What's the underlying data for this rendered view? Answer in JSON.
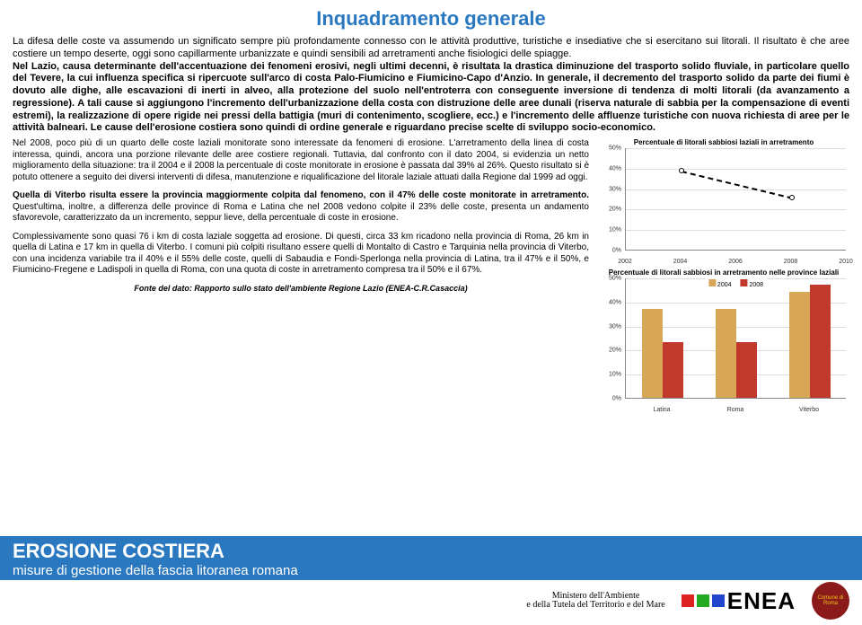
{
  "title_color": "#2a78c0",
  "title": "Inquadramento generale",
  "intro": "La difesa delle coste va assumendo un significato sempre più profondamente connesso con le attività produttive, turistiche e insediative che si esercitano sui litorali. Il risultato è che aree costiere un tempo deserte, oggi sono capillarmente urbanizzate e quindi sensibili ad arretramenti anche fisiologici delle spiagge.\nNel Lazio, causa determinante dell'accentuazione dei fenomeni erosivi, negli ultimi decenni, è risultata la drastica diminuzione del trasporto solido fluviale, in particolare quello del Tevere, la cui influenza specifica si ripercuote sull'arco di costa Palo-Fiumicino e Fiumicino-Capo d'Anzio. In generale, il decremento del trasporto solido da parte dei fiumi è dovuto alle dighe, alle escavazioni di inerti in alveo, alla protezione del suolo nell'entroterra con conseguente inversione di tendenza di molti litorali (da avanzamento a regressione). A tali cause si aggiungono l'incremento dell'urbanizzazione della costa con distruzione delle aree dunali (riserva naturale di sabbia per la compensazione di eventi estremi), la realizzazione di opere rigide nei pressi della battigia (muri di contenimento, scogliere, ecc.) e l'incremento delle affluenze turistiche con nuova richiesta di aree per le attività balneari. Le cause dell'erosione costiera sono quindi di ordine generale e riguardano precise scelte di sviluppo socio-economico.",
  "para1": "Nel 2008, poco più di un quarto delle coste laziali monitorate sono interessate da fenomeni di erosione. L'arretramento della linea di costa interessa, quindi, ancora una porzione rilevante delle aree costiere regionali. Tuttavia, dal confronto con il dato 2004, si evidenzia un netto miglioramento della situazione: tra il 2004 e il 2008 la percentuale di coste monitorate in erosione è passata dal 39% al 26%. Questo risultato si è potuto ottenere a seguito dei diversi interventi di difesa, manutenzione e riqualificazione del litorale laziale attuati dalla Regione dal 1999 ad oggi.",
  "para2_pre": "Quella di Viterbo risulta essere la provincia maggiormente colpita dal fenomeno, con il 47% delle coste monitorate in arretramento.",
  "para2_post": " Quest'ultima, inoltre, a differenza delle province di Roma e Latina che nel 2008 vedono colpite il 23% delle coste, presenta un andamento sfavorevole, caratterizzato da un incremento, seppur lieve, della percentuale di coste in erosione.",
  "para3": "Complessivamente sono quasi 76 i km di costa laziale soggetta ad erosione. Di questi, circa 33 km ricadono nella provincia di Roma, 26 km in quella di Latina e 17 km in quella di Viterbo. I comuni più colpiti risultano essere quelli di Montalto di Castro e Tarquinia nella provincia di Viterbo, con una incidenza variabile tra il 40% e il 55% delle coste, quelli di Sabaudia e Fondi-Sperlonga nella provincia di Latina, tra il 47% e il 50%, e Fiumicino-Fregene e Ladispoli in quella di Roma, con una quota di coste in arretramento compresa tra il 50% e il 67%.",
  "source": "Fonte del dato: Rapporto sullo stato dell'ambiente Regione Lazio (ENEA-C.R.Casaccia)",
  "chart1": {
    "caption": "Percentuale di litorali sabbiosi laziali in arretramento",
    "ymin": 0,
    "ymax": 50,
    "ystep": 10,
    "ysuffix": "%",
    "xticks": [
      "2002",
      "2004",
      "2006",
      "2008",
      "2010"
    ],
    "xvals": [
      2002,
      2004,
      2006,
      2008,
      2010
    ],
    "points": [
      [
        2004,
        39
      ],
      [
        2008,
        26
      ]
    ],
    "line_color": "#000000",
    "grid_color": "#dddddd"
  },
  "chart2": {
    "caption": "Percentuale di litorali sabbiosi in arretramento nelle province laziali",
    "ymin": 0,
    "ymax": 50,
    "ystep": 10,
    "ysuffix": "%",
    "categories": [
      "Latina",
      "Roma",
      "Viterbo"
    ],
    "series": [
      {
        "label": "2004",
        "color": "#d8a657",
        "values": [
          37,
          37,
          44
        ]
      },
      {
        "label": "2008",
        "color": "#c0392b",
        "values": [
          23,
          23,
          47
        ]
      }
    ],
    "grid_color": "#dddddd"
  },
  "footer": {
    "bar_color": "#2a78c0",
    "title": "EROSIONE COSTIERA",
    "subtitle": "misure di gestione della fascia litoranea romana",
    "ministry_line1": "Ministero dell'Ambiente",
    "ministry_line2": "e della Tutela del Territorio e del Mare",
    "enea": "ENEA",
    "roma_bg": "#8b1a1a",
    "roma_fg": "#f0c419",
    "roma": "Comune di Roma"
  }
}
